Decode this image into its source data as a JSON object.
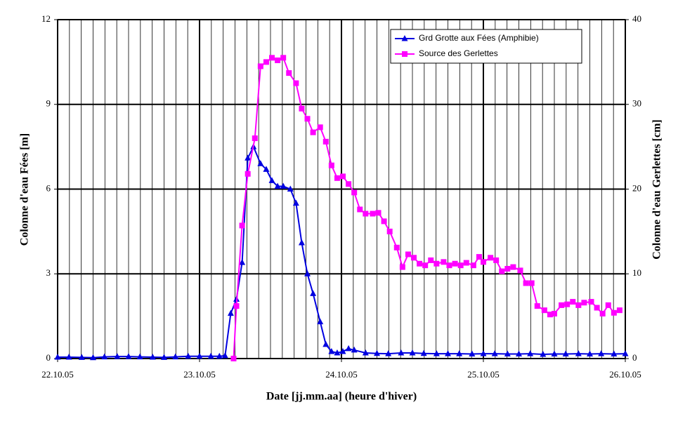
{
  "chart_data": {
    "type": "line",
    "xlabel": "Date [jj.mm.aa] (heure d'hiver)",
    "ylabel": "Colonne d'eau Fées [m]",
    "y2label": "Colonne d'eau Gerlettes [cm]",
    "xlim": [
      0,
      4
    ],
    "xticks": [
      {
        "value": 0,
        "label": "22.10.05"
      },
      {
        "value": 1,
        "label": "23.10.05"
      },
      {
        "value": 2,
        "label": "24.10.05"
      },
      {
        "value": 3,
        "label": "25.10.05"
      },
      {
        "value": 4,
        "label": "26.10.05"
      }
    ],
    "xminor_per_major": 12,
    "ylim": [
      0,
      12
    ],
    "yticks": [
      0,
      3,
      6,
      9,
      12
    ],
    "y2lim": [
      0,
      40
    ],
    "y2ticks": [
      0,
      10,
      20,
      30,
      40
    ],
    "grid": true,
    "legend": "upper right",
    "series": [
      {
        "name": "Grd Grotte aux Fées (Amphibie)",
        "color": "#0000e0",
        "marker": "triangle",
        "x": [
          0,
          0.08,
          0.17,
          0.25,
          0.33,
          0.42,
          0.5,
          0.58,
          0.67,
          0.75,
          0.83,
          0.92,
          1.0,
          1.08,
          1.14,
          1.18,
          1.22,
          1.26,
          1.3,
          1.34,
          1.38,
          1.43,
          1.47,
          1.51,
          1.55,
          1.59,
          1.64,
          1.68,
          1.72,
          1.76,
          1.8,
          1.85,
          1.89,
          1.93,
          1.97,
          2.01,
          2.05,
          2.09,
          2.17,
          2.25,
          2.33,
          2.42,
          2.5,
          2.58,
          2.67,
          2.75,
          2.83,
          2.92,
          3.0,
          3.08,
          3.17,
          3.25,
          3.33,
          3.42,
          3.5,
          3.58,
          3.67,
          3.75,
          3.83,
          3.92,
          4.0
        ],
        "values": [
          0.05,
          0.05,
          0.04,
          0.03,
          0.06,
          0.07,
          0.07,
          0.06,
          0.05,
          0.04,
          0.06,
          0.08,
          0.08,
          0.08,
          0.08,
          0.1,
          1.6,
          2.1,
          3.4,
          7.1,
          7.5,
          6.9,
          6.7,
          6.3,
          6.1,
          6.1,
          6.0,
          5.5,
          4.1,
          3.0,
          2.3,
          1.3,
          0.5,
          0.25,
          0.2,
          0.25,
          0.35,
          0.3,
          0.2,
          0.18,
          0.17,
          0.2,
          0.2,
          0.18,
          0.17,
          0.17,
          0.17,
          0.16,
          0.17,
          0.17,
          0.16,
          0.16,
          0.17,
          0.15,
          0.16,
          0.16,
          0.17,
          0.16,
          0.17,
          0.16,
          0.17
        ]
      },
      {
        "name": "Source des Gerlettes",
        "color": "#ff00ff",
        "marker": "square",
        "axis": "y2",
        "x": [
          1.24,
          1.26,
          1.3,
          1.34,
          1.39,
          1.43,
          1.47,
          1.51,
          1.55,
          1.59,
          1.63,
          1.68,
          1.72,
          1.76,
          1.8,
          1.85,
          1.89,
          1.93,
          1.97,
          2.01,
          2.05,
          2.09,
          2.13,
          2.17,
          2.22,
          2.26,
          2.3,
          2.34,
          2.39,
          2.43,
          2.47,
          2.51,
          2.55,
          2.59,
          2.63,
          2.67,
          2.72,
          2.76,
          2.8,
          2.84,
          2.88,
          2.93,
          2.97,
          3.0,
          3.05,
          3.09,
          3.13,
          3.17,
          3.21,
          3.26,
          3.3,
          3.34,
          3.38,
          3.43,
          3.47,
          3.5,
          3.55,
          3.59,
          3.63,
          3.67,
          3.71,
          3.76,
          3.8,
          3.84,
          3.88,
          3.92,
          3.96
        ],
        "values": [
          0,
          6.2,
          15.7,
          21.8,
          26,
          34.5,
          35,
          35.5,
          35.2,
          35.5,
          33.7,
          32.5,
          29.5,
          28.3,
          26.7,
          27.3,
          25.6,
          22.8,
          21.3,
          21.5,
          20.6,
          19.6,
          17.6,
          17.1,
          17.1,
          17.2,
          16.2,
          15,
          13.1,
          10.8,
          12.3,
          11.9,
          11.2,
          11.0,
          11.6,
          11.2,
          11.4,
          11.0,
          11.2,
          11.0,
          11.3,
          11.0,
          12.0,
          11.4,
          11.9,
          11.6,
          10.3,
          10.6,
          10.8,
          10.4,
          8.9,
          8.9,
          6.2,
          5.7,
          5.2,
          5.3,
          6.3,
          6.4,
          6.7,
          6.3,
          6.6,
          6.7,
          6.0,
          5.3,
          6.3,
          5.4,
          5.7
        ]
      }
    ]
  }
}
